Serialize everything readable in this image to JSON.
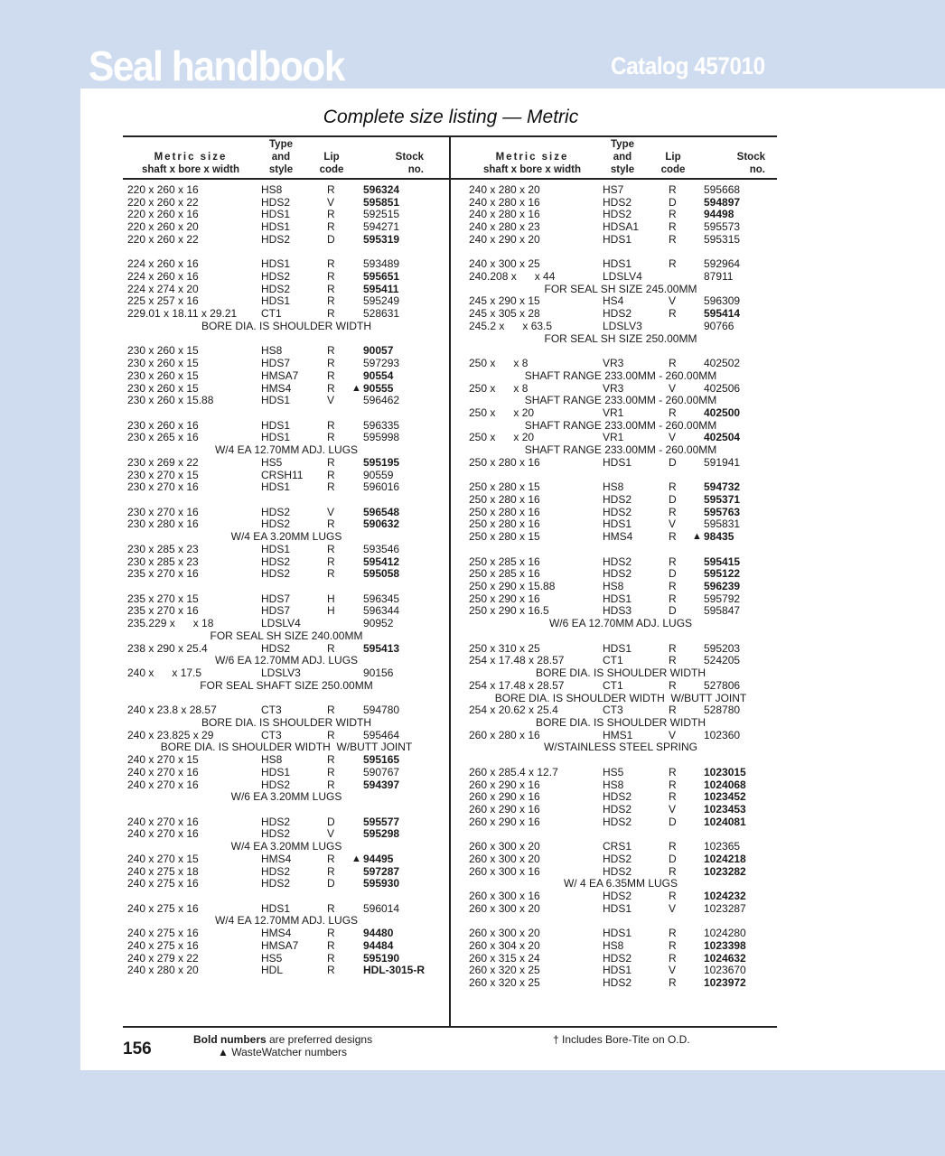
{
  "header": {
    "brand": "Seal handbook",
    "catalog": "Catalog 457010",
    "page_title": "Complete size listing — Metric"
  },
  "colors": {
    "background": "#cfdcef",
    "page": "#ffffff",
    "text": "#1a1a1a"
  },
  "columns": {
    "size_1": "Metric size",
    "size_2": "shaft x bore x width",
    "type_1": "Type",
    "type_2": "and",
    "type_3": "style",
    "lip_1": "Lip",
    "lip_2": "code",
    "stock_1": "Stock",
    "stock_2": "no."
  },
  "marker": "▲",
  "left": [
    [
      "220 x 260 x 16",
      "HS8",
      "R",
      "596324",
      1,
      0
    ],
    [
      "220 x 260 x 22",
      "HDS2",
      "V",
      "595851",
      1,
      0
    ],
    [
      "220 x 260 x 16",
      "HDS1",
      "R",
      "592515",
      0,
      0
    ],
    [
      "220 x 260 x 20",
      "HDS1",
      "R",
      "594271",
      0,
      0
    ],
    [
      "220 x 260 x 22",
      "HDS2",
      "D",
      "595319",
      1,
      0
    ],
    null,
    [
      "224 x 260 x 16",
      "HDS1",
      "R",
      "593489",
      0,
      0
    ],
    [
      "224 x 260 x 16",
      "HDS2",
      "R",
      "595651",
      1,
      0
    ],
    [
      "224 x 274 x 20",
      "HDS2",
      "R",
      "595411",
      1,
      0
    ],
    [
      "225 x 257 x 16",
      "HDS1",
      "R",
      "595249",
      0,
      0
    ],
    [
      "229.01 x 18.11 x 29.21",
      "CT1",
      "R",
      "528631",
      0,
      0
    ],
    "BORE DIA. IS SHOULDER WIDTH",
    null,
    [
      "230 x 260 x 15",
      "HS8",
      "R",
      "90057",
      1,
      0
    ],
    [
      "230 x 260 x 15",
      "HDS7",
      "R",
      "597293",
      0,
      0
    ],
    [
      "230 x 260 x 15",
      "HMSA7",
      "R",
      "90554",
      1,
      0
    ],
    [
      "230 x 260 x 15",
      "HMS4",
      "R",
      "90555",
      1,
      1
    ],
    [
      "230 x 260 x 15.88",
      "HDS1",
      "V",
      "596462",
      0,
      0
    ],
    null,
    [
      "230 x 260 x 16",
      "HDS1",
      "R",
      "596335",
      0,
      0
    ],
    [
      "230 x 265 x 16",
      "HDS1",
      "R",
      "595998",
      0,
      0
    ],
    "W/4 EA 12.70MM ADJ. LUGS",
    [
      "230 x 269 x 22",
      "HS5",
      "R",
      "595195",
      1,
      0
    ],
    [
      "230 x 270 x 15",
      "CRSH11",
      "R",
      "90559",
      0,
      0
    ],
    [
      "230 x 270 x 16",
      "HDS1",
      "R",
      "596016",
      0,
      0
    ],
    null,
    [
      "230 x 270 x 16",
      "HDS2",
      "V",
      "596548",
      1,
      0
    ],
    [
      "230 x 280 x 16",
      "HDS2",
      "R",
      "590632",
      1,
      0
    ],
    "W/4 EA 3.20MM LUGS",
    [
      "230 x 285 x 23",
      "HDS1",
      "R",
      "593546",
      0,
      0
    ],
    [
      "230 x 285 x 23",
      "HDS2",
      "R",
      "595412",
      1,
      0
    ],
    [
      "235 x 270 x 16",
      "HDS2",
      "R",
      "595058",
      1,
      0
    ],
    null,
    [
      "235 x 270 x 15",
      "HDS7",
      "H",
      "596345",
      0,
      0
    ],
    [
      "235 x 270 x 16",
      "HDS7",
      "H",
      "596344",
      0,
      0
    ],
    [
      "235.229 x      x 18",
      "LDSLV4",
      "",
      "90952",
      0,
      0
    ],
    "FOR SEAL SH SIZE 240.00MM",
    [
      "238 x 290 x 25.4",
      "HDS2",
      "R",
      "595413",
      1,
      0
    ],
    "W/6 EA 12.70MM ADJ. LUGS",
    [
      "240 x      x 17.5",
      "LDSLV3",
      "",
      "90156",
      0,
      0
    ],
    "FOR SEAL SHAFT SIZE 250.00MM",
    null,
    [
      "240 x 23.8 x 28.57",
      "CT3",
      "R",
      "594780",
      0,
      0
    ],
    "BORE DIA. IS SHOULDER WIDTH",
    [
      "240 x 23.825 x 29",
      "CT3",
      "R",
      "595464",
      0,
      0
    ],
    "BORE DIA. IS SHOULDER WIDTH  W/BUTT JOINT",
    [
      "240 x 270 x 15",
      "HS8",
      "R",
      "595165",
      1,
      0
    ],
    [
      "240 x 270 x 16",
      "HDS1",
      "R",
      "590767",
      0,
      0
    ],
    [
      "240 x 270 x 16",
      "HDS2",
      "R",
      "594397",
      1,
      0
    ],
    "W/6 EA 3.20MM LUGS",
    null,
    [
      "240 x 270 x 16",
      "HDS2",
      "D",
      "595577",
      1,
      0
    ],
    [
      "240 x 270 x 16",
      "HDS2",
      "V",
      "595298",
      1,
      0
    ],
    "W/4 EA 3.20MM LUGS",
    [
      "240 x 270 x 15",
      "HMS4",
      "R",
      "94495",
      1,
      1
    ],
    [
      "240 x 275 x 18",
      "HDS2",
      "R",
      "597287",
      1,
      0
    ],
    [
      "240 x 275 x 16",
      "HDS2",
      "D",
      "595930",
      1,
      0
    ],
    null,
    [
      "240 x 275 x 16",
      "HDS1",
      "R",
      "596014",
      0,
      0
    ],
    "W/4 EA 12.70MM ADJ. LUGS",
    [
      "240 x 275 x 16",
      "HMS4",
      "R",
      "94480",
      1,
      0
    ],
    [
      "240 x 275 x 16",
      "HMSA7",
      "R",
      "94484",
      1,
      0
    ],
    [
      "240 x 279 x 22",
      "HS5",
      "R",
      "595190",
      1,
      0
    ],
    [
      "240 x 280 x 20",
      "HDL",
      "R",
      "HDL-3015-R",
      1,
      0
    ]
  ],
  "right": [
    [
      "240 x 280 x 20",
      "HS7",
      "R",
      "595668",
      0,
      0
    ],
    [
      "240 x 280 x 16",
      "HDS2",
      "D",
      "594897",
      1,
      0
    ],
    [
      "240 x 280 x 16",
      "HDS2",
      "R",
      "94498",
      1,
      0
    ],
    [
      "240 x 280 x 23",
      "HDSA1",
      "R",
      "595573",
      0,
      0
    ],
    [
      "240 x 290 x 20",
      "HDS1",
      "R",
      "595315",
      0,
      0
    ],
    null,
    [
      "240 x 300 x 25",
      "HDS1",
      "R",
      "592964",
      0,
      0
    ],
    [
      "240.208 x      x 44",
      "LDSLV4",
      "",
      "87911",
      0,
      0
    ],
    "FOR SEAL SH SIZE 245.00MM",
    [
      "245 x 290 x 15",
      "HS4",
      "V",
      "596309",
      0,
      0
    ],
    [
      "245 x 305 x 28",
      "HDS2",
      "R",
      "595414",
      1,
      0
    ],
    [
      "245.2 x      x 63.5",
      "LDSLV3",
      "",
      "90766",
      0,
      0
    ],
    "FOR SEAL SH SIZE 250.00MM",
    null,
    [
      "250 x      x 8",
      "VR3",
      "R",
      "402502",
      0,
      0
    ],
    "SHAFT RANGE 233.00MM - 260.00MM",
    [
      "250 x      x 8",
      "VR3",
      "V",
      "402506",
      0,
      0
    ],
    "SHAFT RANGE 233.00MM - 260.00MM",
    [
      "250 x      x 20",
      "VR1",
      "R",
      "402500",
      1,
      0
    ],
    "SHAFT RANGE 233.00MM - 260.00MM",
    [
      "250 x      x 20",
      "VR1",
      "V",
      "402504",
      1,
      0
    ],
    "SHAFT RANGE 233.00MM - 260.00MM",
    [
      "250 x 280 x 16",
      "HDS1",
      "D",
      "591941",
      0,
      0
    ],
    null,
    [
      "250 x 280 x 15",
      "HS8",
      "R",
      "594732",
      1,
      0
    ],
    [
      "250 x 280 x 16",
      "HDS2",
      "D",
      "595371",
      1,
      0
    ],
    [
      "250 x 280 x 16",
      "HDS2",
      "R",
      "595763",
      1,
      0
    ],
    [
      "250 x 280 x 16",
      "HDS1",
      "V",
      "595831",
      0,
      0
    ],
    [
      "250 x 280 x 15",
      "HMS4",
      "R",
      "98435",
      1,
      1
    ],
    null,
    [
      "250 x 285 x 16",
      "HDS2",
      "R",
      "595415",
      1,
      0
    ],
    [
      "250 x 285 x 16",
      "HDS2",
      "D",
      "595122",
      1,
      0
    ],
    [
      "250 x 290 x 15.88",
      "HS8",
      "R",
      "596239",
      1,
      0
    ],
    [
      "250 x 290 x 16",
      "HDS1",
      "R",
      "595792",
      0,
      0
    ],
    [
      "250 x 290 x 16.5",
      "HDS3",
      "D",
      "595847",
      0,
      0
    ],
    "W/6 EA 12.70MM ADJ. LUGS",
    null,
    [
      "250 x 310 x 25",
      "HDS1",
      "R",
      "595203",
      0,
      0
    ],
    [
      "254 x 17.48 x 28.57",
      "CT1",
      "R",
      "524205",
      0,
      0
    ],
    "BORE DIA. IS SHOULDER WIDTH",
    [
      "254 x 17.48 x 28.57",
      "CT1",
      "R",
      "527806",
      0,
      0
    ],
    "BORE DIA. IS SHOULDER WIDTH  W/BUTT JOINT",
    [
      "254 x 20.62 x 25.4",
      "CT3",
      "R",
      "528780",
      0,
      0
    ],
    "BORE DIA. IS SHOULDER WIDTH",
    [
      "260 x 280 x 16",
      "HMS1",
      "V",
      "102360",
      0,
      0
    ],
    "W/STAINLESS STEEL SPRING",
    null,
    [
      "260 x 285.4 x 12.7",
      "HS5",
      "R",
      "1023015",
      1,
      0
    ],
    [
      "260 x 290 x 16",
      "HS8",
      "R",
      "1024068",
      1,
      0
    ],
    [
      "260 x 290 x 16",
      "HDS2",
      "R",
      "1023452",
      1,
      0
    ],
    [
      "260 x 290 x 16",
      "HDS2",
      "V",
      "1023453",
      1,
      0
    ],
    [
      "260 x 290 x 16",
      "HDS2",
      "D",
      "1024081",
      1,
      0
    ],
    null,
    [
      "260 x 300 x 20",
      "CRS1",
      "R",
      "102365",
      0,
      0
    ],
    [
      "260 x 300 x 20",
      "HDS2",
      "D",
      "1024218",
      1,
      0
    ],
    [
      "260 x 300 x 16",
      "HDS2",
      "R",
      "1023282",
      1,
      0
    ],
    "W/ 4 EA 6.35MM LUGS",
    [
      "260 x 300 x 16",
      "HDS2",
      "R",
      "1024232",
      1,
      0
    ],
    [
      "260 x 300 x 20",
      "HDS1",
      "V",
      "1023287",
      0,
      0
    ],
    null,
    [
      "260 x 300 x 20",
      "HDS1",
      "R",
      "1024280",
      0,
      0
    ],
    [
      "260 x 304 x 20",
      "HS8",
      "R",
      "1023398",
      1,
      0
    ],
    [
      "260 x 315 x 24",
      "HDS2",
      "R",
      "1024632",
      1,
      0
    ],
    [
      "260 x 320 x 25",
      "HDS1",
      "V",
      "1023670",
      0,
      0
    ],
    [
      "260 x 320 x 25",
      "HDS2",
      "R",
      "1023972",
      1,
      0
    ]
  ],
  "footer": {
    "page_number": "156",
    "bold_label": "Bold numbers",
    "bold_rest": " are preferred designs",
    "wastewatcher": "▲ WasteWatcher numbers",
    "dagger_note": "† Includes Bore-Tite on O.D."
  }
}
